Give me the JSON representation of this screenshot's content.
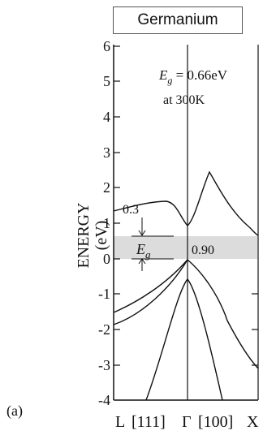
{
  "title": "Germanium",
  "panel_label": "(a)",
  "y_axis": {
    "label": "ENERGY",
    "unit": "(eV)",
    "ticks": [
      "6",
      "5",
      "4",
      "3",
      "2",
      "1",
      "0",
      "-1",
      "-2",
      "-3",
      "-4"
    ],
    "range": [
      -4,
      6
    ]
  },
  "x_axis": {
    "labels": [
      "L",
      "[111]",
      "Γ",
      "[100]",
      "X"
    ]
  },
  "annotations": {
    "eg_symbol": "E",
    "eg_subscript": "g",
    "eg_value": " = 0.66eV",
    "temperature": "at 300K",
    "gap_left_value": "0.3",
    "gap_gamma_value": "0.90"
  },
  "colors": {
    "gap_band": "#dcdcdc",
    "curves": "#111111",
    "frame": "#111111"
  }
}
